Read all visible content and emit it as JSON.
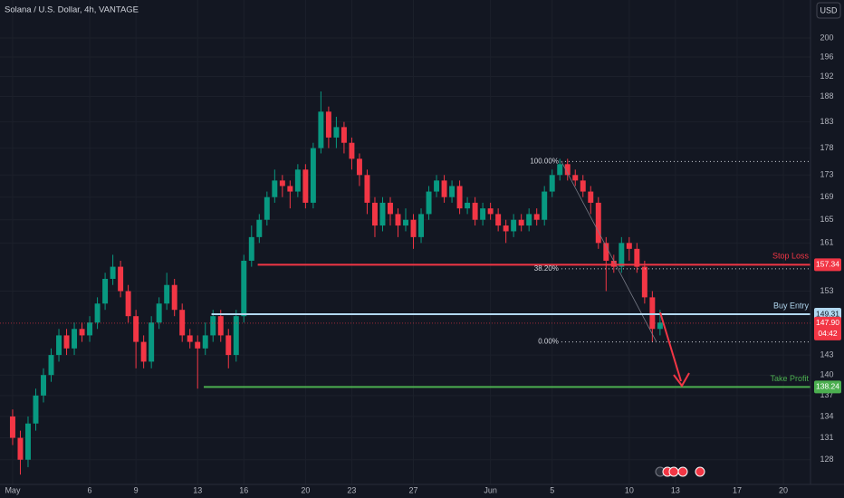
{
  "chart_data": {
    "type": "candlestick",
    "title": "Solana / U.S. Dollar, 4h, VANTAGE",
    "currency": "USD",
    "log": true,
    "grid": true,
    "up_color": "#089981",
    "down_color": "#f23645",
    "xlim": [
      0.18,
      52.76
    ],
    "xticks": [
      {
        "value": 1,
        "label": "May"
      },
      6,
      9,
      13,
      16,
      20,
      23,
      27,
      {
        "value": 32,
        "label": "Jun"
      },
      {
        "value": 36,
        "label": "5"
      },
      {
        "value": 41,
        "label": "10"
      },
      {
        "value": 44,
        "label": "13"
      },
      {
        "value": 48,
        "label": "17"
      },
      {
        "value": 51,
        "label": "20"
      }
    ],
    "ylim": [
      124.7,
      208.2
    ],
    "yticks": [
      200,
      196,
      192,
      188,
      183,
      178,
      173,
      169,
      165,
      161,
      153,
      143,
      140,
      137,
      134,
      131,
      128
    ],
    "x": [
      1,
      1.5,
      2,
      2.5,
      3,
      3.5,
      4,
      4.5,
      5,
      5.5,
      6,
      6.5,
      7,
      7.5,
      8,
      8.5,
      9,
      9.5,
      10,
      10.5,
      11,
      11.5,
      12,
      12.5,
      13,
      13.5,
      14,
      14.5,
      15,
      15.5,
      16,
      16.5,
      17,
      17.5,
      18,
      18.5,
      19,
      19.5,
      20,
      20.5,
      21,
      21.5,
      22,
      22.5,
      23,
      23.5,
      24,
      24.5,
      25,
      25.5,
      26,
      26.5,
      27,
      27.5,
      28,
      28.5,
      29,
      29.5,
      30,
      30.5,
      31,
      31.5,
      32,
      32.5,
      33,
      33.5,
      34,
      34.5,
      35,
      35.5,
      36,
      36.5,
      37,
      37.5,
      38,
      38.5,
      39,
      39.5,
      40,
      40.5,
      41,
      41.5,
      42,
      42.5,
      43
    ],
    "open": [
      134,
      131,
      128,
      133,
      137,
      140,
      143,
      146,
      144,
      147,
      146,
      148,
      151,
      155,
      157,
      153,
      149,
      145,
      142,
      148,
      151,
      154,
      150,
      146,
      145,
      144,
      146,
      149,
      146,
      143,
      149,
      158,
      162,
      165,
      169,
      172,
      171,
      170,
      174,
      168,
      178,
      185,
      180,
      182,
      179,
      176,
      173,
      168,
      164,
      168,
      166,
      164,
      165,
      162,
      166,
      170,
      172,
      169,
      171,
      167,
      168,
      165,
      167,
      166,
      164,
      163,
      165,
      164,
      166,
      165,
      170,
      173,
      175,
      173,
      172,
      170,
      168,
      161,
      158,
      157,
      161,
      160,
      157,
      152,
      147
    ],
    "high": [
      135,
      132,
      134,
      138,
      141,
      144,
      147,
      147,
      148,
      148,
      149,
      152,
      156,
      159,
      158,
      154,
      150,
      146,
      149,
      152,
      156,
      155,
      151,
      147,
      146,
      148,
      150,
      150,
      147,
      150,
      159,
      164,
      166,
      170,
      174,
      173,
      172,
      175,
      175,
      179,
      189,
      186,
      184,
      183,
      180,
      177,
      174,
      169,
      169,
      169,
      167,
      167,
      166,
      167,
      171,
      173,
      173,
      172,
      172,
      169,
      169,
      168,
      168,
      167,
      165,
      166,
      166,
      167,
      167,
      171,
      174,
      176,
      176,
      174,
      173,
      171,
      169,
      162,
      159,
      162,
      162,
      161,
      158,
      153,
      150
    ],
    "low": [
      130,
      126,
      127,
      132,
      136,
      139,
      142,
      143,
      143,
      145,
      145,
      147,
      150,
      154,
      152,
      148,
      141,
      141,
      141,
      147,
      150,
      149,
      145,
      144,
      138,
      143,
      145,
      145,
      141,
      142,
      148,
      157,
      161,
      164,
      168,
      169,
      167,
      169,
      167,
      167,
      177,
      178,
      178,
      177,
      174,
      171,
      166,
      162,
      163,
      164,
      162,
      163,
      160,
      161,
      165,
      169,
      168,
      168,
      166,
      166,
      164,
      164,
      165,
      163,
      161,
      162,
      163,
      163,
      164,
      164,
      169,
      172,
      172,
      171,
      169,
      166,
      160,
      153,
      156,
      156,
      158,
      156,
      151,
      145,
      146
    ],
    "close": [
      131,
      128,
      133,
      137,
      140,
      143,
      146,
      144,
      147,
      146,
      148,
      151,
      155,
      157,
      153,
      149,
      145,
      142,
      148,
      151,
      154,
      150,
      146,
      145,
      144,
      146,
      149,
      146,
      143,
      149,
      158,
      162,
      165,
      169,
      172,
      171,
      170,
      174,
      168,
      178,
      185,
      180,
      182,
      179,
      176,
      173,
      168,
      164,
      168,
      166,
      164,
      165,
      162,
      166,
      170,
      172,
      169,
      171,
      167,
      168,
      165,
      167,
      166,
      164,
      163,
      165,
      164,
      166,
      165,
      170,
      173,
      175,
      173,
      172,
      170,
      168,
      161,
      158,
      157,
      161,
      160,
      157,
      152,
      147,
      148
    ],
    "levels": [
      {
        "name": "Stop Loss",
        "value": 157.34,
        "color": "#f23645",
        "x_start": 16.9
      },
      {
        "name": "Buy Entry",
        "value": 149.31,
        "color": "#b2d8f0",
        "x_start": 13.9
      },
      {
        "name": "Take Profit",
        "value": 138.24,
        "color": "#4caf50",
        "x_start": 13.4
      }
    ],
    "current_price": {
      "value": 147.9,
      "label": "147.90",
      "countdown": "04:42",
      "color": "#f23645"
    },
    "fib": {
      "x_start": 36.6,
      "levels": [
        {
          "value": 175.5,
          "label": "100.00%"
        },
        {
          "value": 156.65,
          "label": "38.20%"
        },
        {
          "value": 145.0,
          "label": "0.00%"
        }
      ]
    }
  }
}
